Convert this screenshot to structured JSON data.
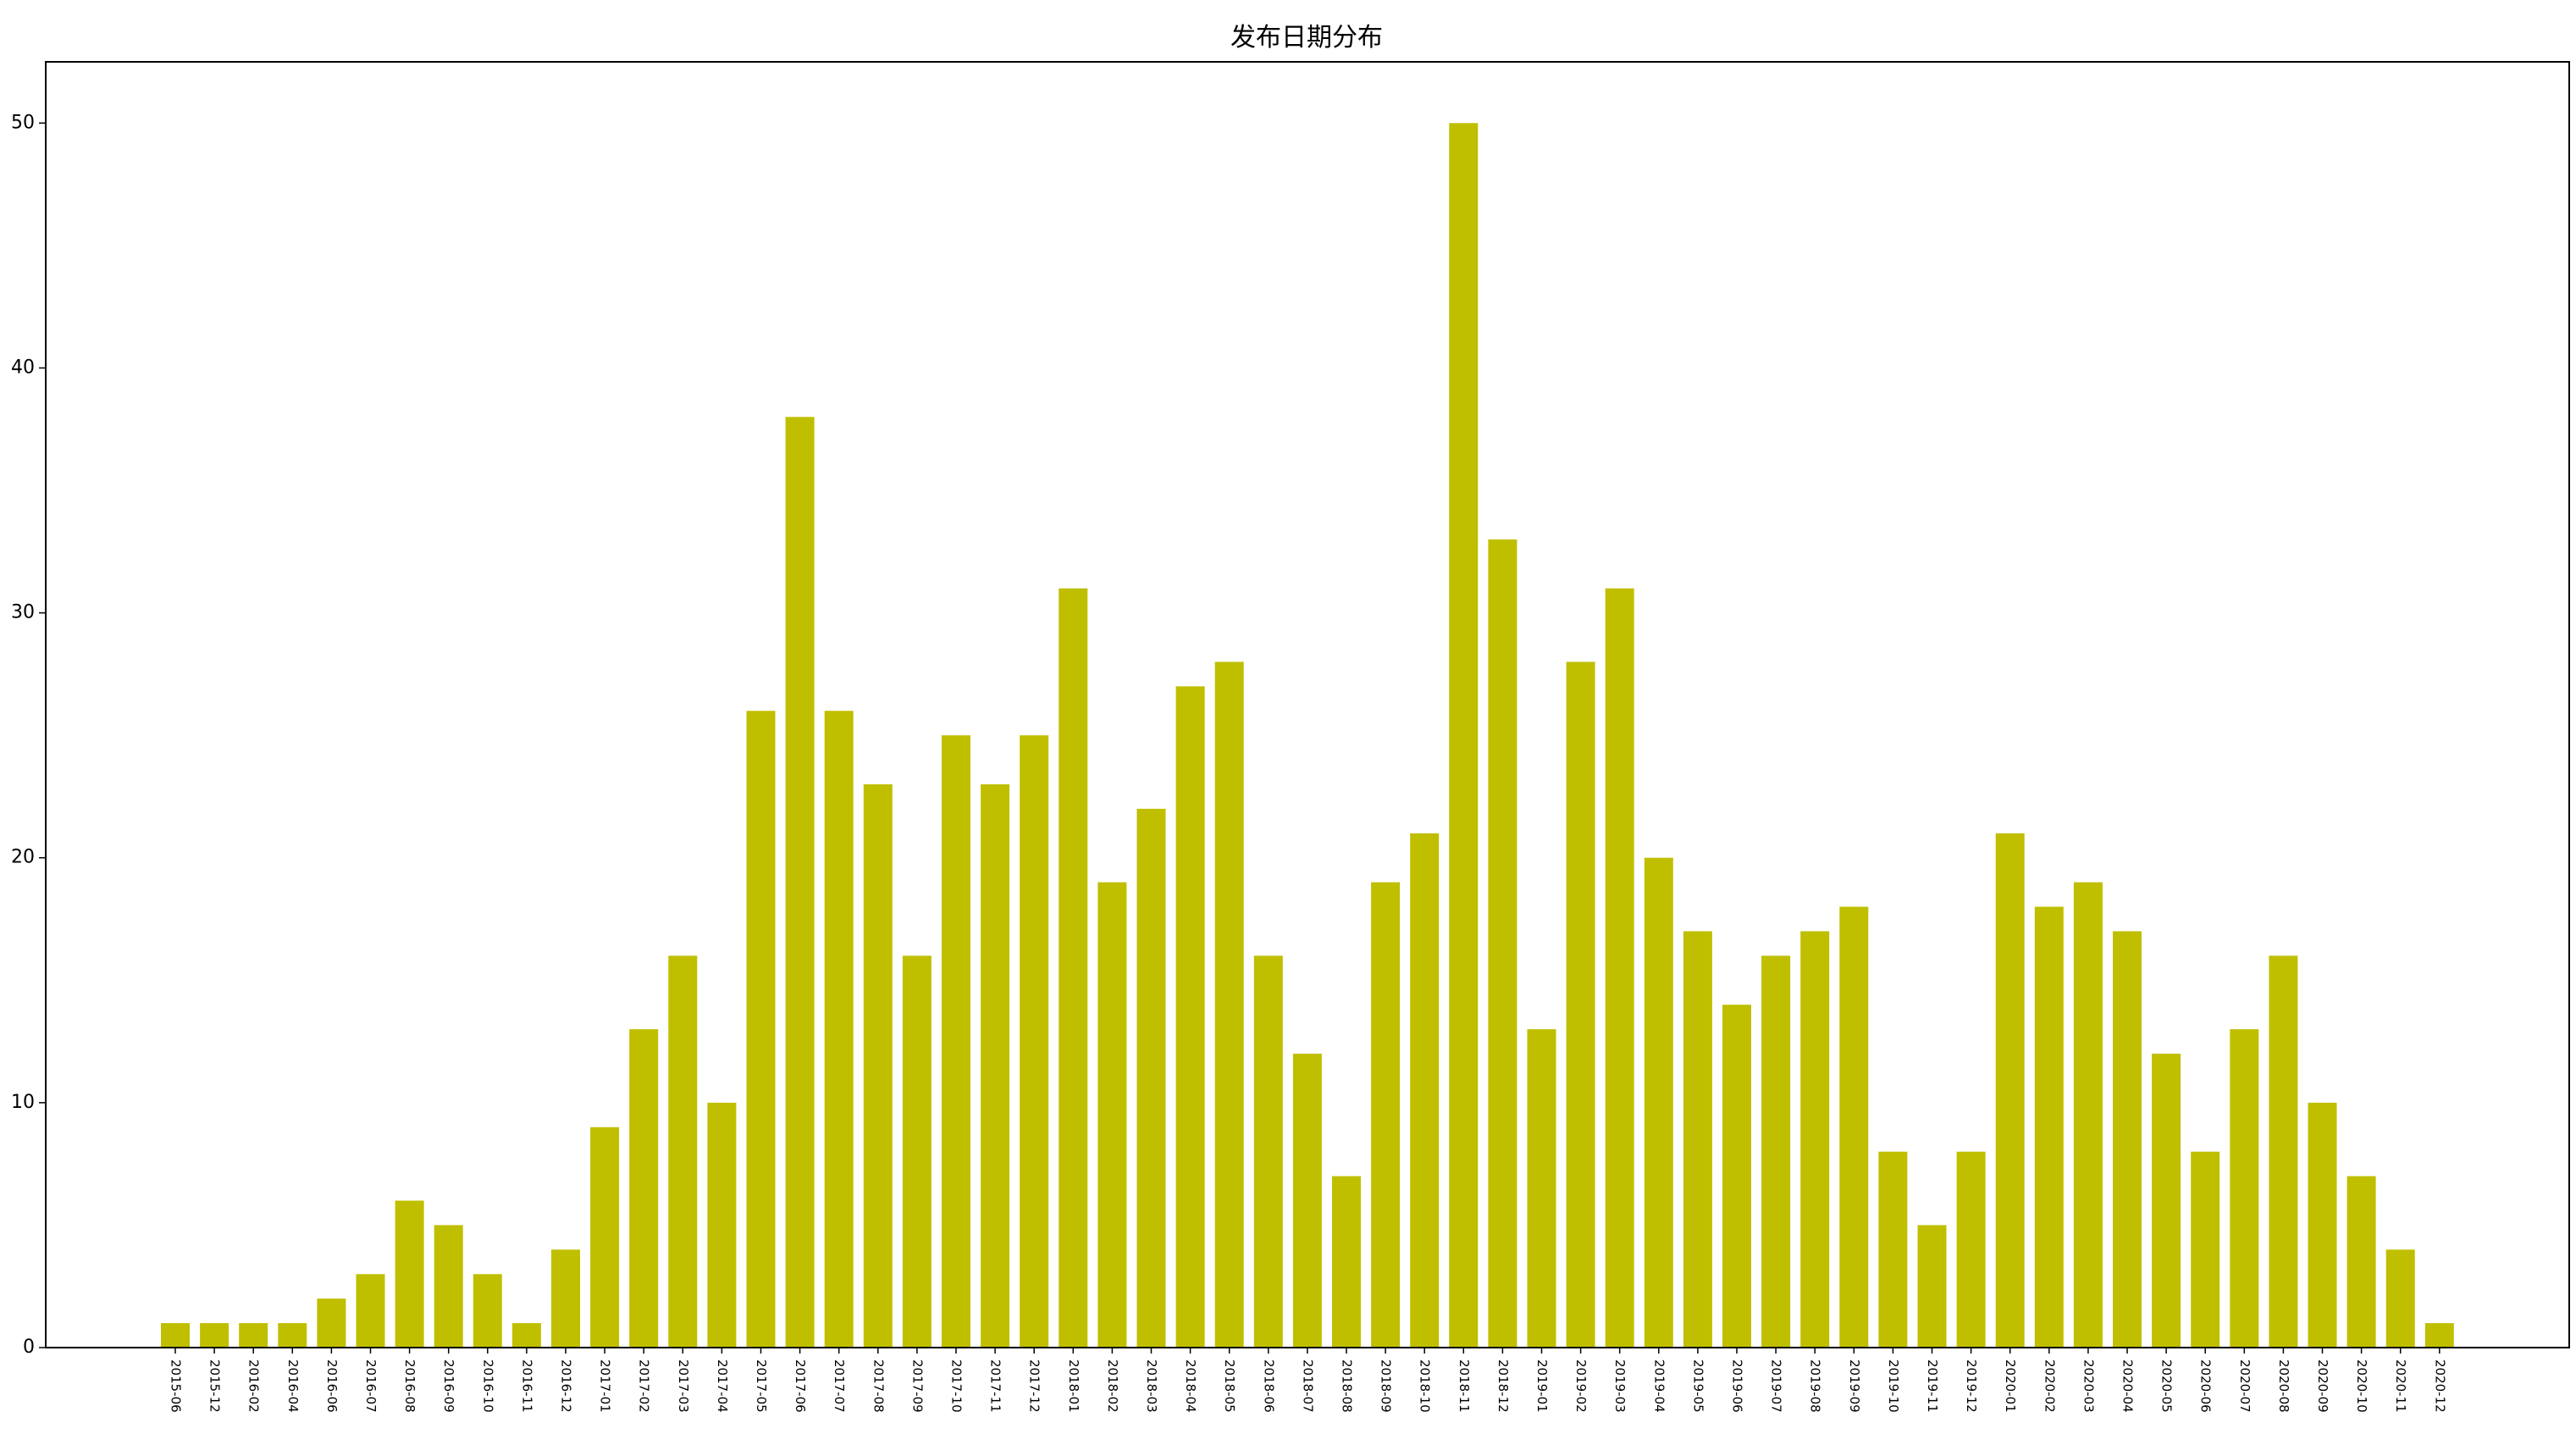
{
  "chart_data": {
    "type": "bar",
    "title": "发布日期分布",
    "xlabel": "",
    "ylabel": "",
    "ylim": [
      0,
      52.5
    ],
    "yticks": [
      0,
      10,
      20,
      30,
      40,
      50
    ],
    "grid": false,
    "legend": "none",
    "bar_color": "#bfbf00",
    "categories": [
      "2015-06",
      "2015-12",
      "2016-02",
      "2016-04",
      "2016-06",
      "2016-07",
      "2016-08",
      "2016-09",
      "2016-10",
      "2016-11",
      "2016-12",
      "2017-01",
      "2017-02",
      "2017-03",
      "2017-04",
      "2017-05",
      "2017-06",
      "2017-07",
      "2017-08",
      "2017-09",
      "2017-10",
      "2017-11",
      "2017-12",
      "2018-01",
      "2018-02",
      "2018-03",
      "2018-04",
      "2018-05",
      "2018-06",
      "2018-07",
      "2018-08",
      "2018-09",
      "2018-10",
      "2018-11",
      "2018-12",
      "2019-01",
      "2019-02",
      "2019-03",
      "2019-04",
      "2019-05",
      "2019-06",
      "2019-07",
      "2019-08",
      "2019-09",
      "2019-10",
      "2019-11",
      "2019-12",
      "2020-01",
      "2020-02",
      "2020-03",
      "2020-04",
      "2020-05",
      "2020-06",
      "2020-07",
      "2020-08",
      "2020-09",
      "2020-10",
      "2020-11",
      "2020-12"
    ],
    "values": [
      1,
      1,
      1,
      1,
      2,
      3,
      6,
      5,
      3,
      1,
      4,
      9,
      13,
      16,
      10,
      26,
      38,
      26,
      23,
      16,
      25,
      23,
      25,
      31,
      19,
      22,
      27,
      28,
      16,
      12,
      7,
      19,
      21,
      50,
      33,
      13,
      28,
      31,
      20,
      17,
      14,
      16,
      17,
      18,
      8,
      5,
      8,
      21,
      18,
      19,
      17,
      12,
      8,
      13,
      16,
      10,
      7,
      4,
      1
    ]
  }
}
